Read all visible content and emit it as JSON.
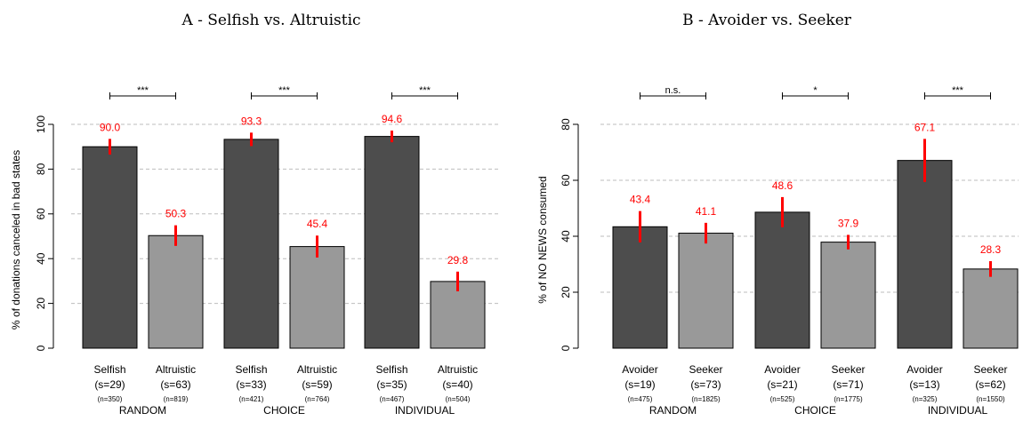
{
  "colors": {
    "dark": "#4d4d4d",
    "light": "#999999",
    "error": "#ff0000",
    "grid": "#bdbdbd"
  },
  "chart_data": [
    {
      "type": "bar",
      "title": "A - Selfish vs. Altruistic",
      "ylabel": "% of donations canceled in bad states",
      "ylim": [
        0,
        100
      ],
      "yticks": [
        0,
        20,
        40,
        60,
        80,
        100
      ],
      "grid": true,
      "groups": [
        {
          "name": "RANDOM",
          "significance": "***",
          "bars": [
            {
              "label": "Selfish",
              "s": "(s=29)",
              "n": "(n=350)",
              "value": 90.0,
              "value_label": "90.0",
              "ci": [
                86.5,
                93.5
              ],
              "shade": "dark"
            },
            {
              "label": "Altruistic",
              "s": "(s=63)",
              "n": "(n=819)",
              "value": 50.3,
              "value_label": "50.3",
              "ci": [
                45.7,
                54.9
              ],
              "shade": "light"
            }
          ]
        },
        {
          "name": "CHOICE",
          "significance": "***",
          "bars": [
            {
              "label": "Selfish",
              "s": "(s=33)",
              "n": "(n=421)",
              "value": 93.3,
              "value_label": "93.3",
              "ci": [
                90.3,
                96.3
              ],
              "shade": "dark"
            },
            {
              "label": "Altruistic",
              "s": "(s=59)",
              "n": "(n=764)",
              "value": 45.4,
              "value_label": "45.4",
              "ci": [
                40.5,
                50.3
              ],
              "shade": "light"
            }
          ]
        },
        {
          "name": "INDIVIDUAL",
          "significance": "***",
          "bars": [
            {
              "label": "Selfish",
              "s": "(s=35)",
              "n": "(n=467)",
              "value": 94.6,
              "value_label": "94.6",
              "ci": [
                92.0,
                97.2
              ],
              "shade": "dark"
            },
            {
              "label": "Altruistic",
              "s": "(s=40)",
              "n": "(n=504)",
              "value": 29.8,
              "value_label": "29.8",
              "ci": [
                25.4,
                34.2
              ],
              "shade": "light"
            }
          ]
        }
      ]
    },
    {
      "type": "bar",
      "title": "B - Avoider vs. Seeker",
      "ylabel": "% of NO NEWS consumed",
      "ylim": [
        0,
        80
      ],
      "yticks": [
        0,
        20,
        40,
        60,
        80
      ],
      "grid": true,
      "groups": [
        {
          "name": "RANDOM",
          "significance": "n.s.",
          "bars": [
            {
              "label": "Avoider",
              "s": "(s=19)",
              "n": "(n=475)",
              "value": 43.4,
              "value_label": "43.4",
              "ci": [
                37.8,
                49.0
              ],
              "shade": "dark"
            },
            {
              "label": "Seeker",
              "s": "(s=73)",
              "n": "(n=1825)",
              "value": 41.1,
              "value_label": "41.1",
              "ci": [
                37.4,
                44.8
              ],
              "shade": "light"
            }
          ]
        },
        {
          "name": "CHOICE",
          "significance": "*",
          "bars": [
            {
              "label": "Avoider",
              "s": "(s=21)",
              "n": "(n=525)",
              "value": 48.6,
              "value_label": "48.6",
              "ci": [
                43.2,
                54.0
              ],
              "shade": "dark"
            },
            {
              "label": "Seeker",
              "s": "(s=71)",
              "n": "(n=1775)",
              "value": 37.9,
              "value_label": "37.9",
              "ci": [
                35.3,
                40.5
              ],
              "shade": "light"
            }
          ]
        },
        {
          "name": "INDIVIDUAL",
          "significance": "***",
          "bars": [
            {
              "label": "Avoider",
              "s": "(s=13)",
              "n": "(n=325)",
              "value": 67.1,
              "value_label": "67.1",
              "ci": [
                59.4,
                74.8
              ],
              "shade": "dark"
            },
            {
              "label": "Seeker",
              "s": "(s=62)",
              "n": "(n=1550)",
              "value": 28.3,
              "value_label": "28.3",
              "ci": [
                25.5,
                31.1
              ],
              "shade": "light"
            }
          ]
        }
      ]
    }
  ]
}
